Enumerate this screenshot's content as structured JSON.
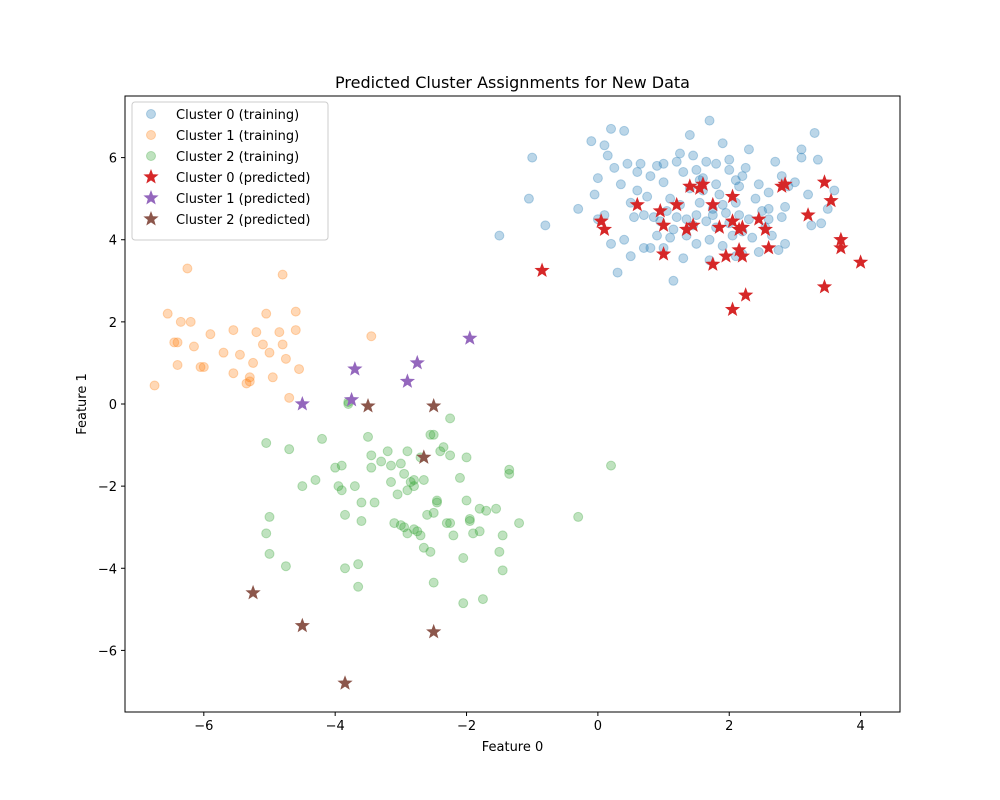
{
  "chart_data": {
    "type": "scatter",
    "title": "Predicted Cluster Assignments for New Data",
    "xlabel": "Feature 0",
    "ylabel": "Feature 1",
    "xlim": [
      -7.2,
      4.6
    ],
    "ylim": [
      -7.5,
      7.5
    ],
    "xticks": [
      -6,
      -4,
      -2,
      0,
      2,
      4
    ],
    "yticks": [
      -6,
      -4,
      -2,
      0,
      2,
      4,
      6
    ],
    "grid": false,
    "legend_position": "top-left",
    "series": [
      {
        "name": "Cluster 0 (training)",
        "marker": "circle",
        "color": "#1f77b4",
        "alpha": 0.3,
        "points": [
          [
            -0.3,
            4.75
          ],
          [
            -1.0,
            6.0
          ],
          [
            -1.05,
            5.0
          ],
          [
            -0.8,
            4.35
          ],
          [
            -1.5,
            4.1
          ],
          [
            0.3,
            3.2
          ],
          [
            0.0,
            5.5
          ],
          [
            0.1,
            6.3
          ],
          [
            -0.1,
            6.4
          ],
          [
            0.2,
            6.7
          ],
          [
            0.4,
            6.65
          ],
          [
            0.6,
            5.65
          ],
          [
            0.8,
            5.55
          ],
          [
            0.9,
            5.8
          ],
          [
            1.0,
            5.4
          ],
          [
            1.1,
            5.0
          ],
          [
            1.2,
            5.9
          ],
          [
            1.3,
            5.65
          ],
          [
            1.4,
            6.55
          ],
          [
            1.5,
            5.7
          ],
          [
            1.6,
            5.5
          ],
          [
            1.7,
            6.9
          ],
          [
            1.8,
            5.85
          ],
          [
            1.9,
            6.35
          ],
          [
            2.0,
            5.95
          ],
          [
            2.1,
            5.45
          ],
          [
            2.2,
            5.55
          ],
          [
            2.3,
            6.2
          ],
          [
            2.4,
            5.0
          ],
          [
            2.5,
            4.7
          ],
          [
            2.6,
            4.5
          ],
          [
            2.7,
            5.9
          ],
          [
            2.8,
            5.55
          ],
          [
            2.9,
            5.3
          ],
          [
            3.0,
            5.4
          ],
          [
            3.1,
            6.2
          ],
          [
            3.2,
            5.1
          ],
          [
            3.3,
            6.6
          ],
          [
            3.4,
            4.4
          ],
          [
            3.5,
            4.75
          ],
          [
            3.6,
            5.2
          ],
          [
            3.1,
            6.0
          ],
          [
            3.35,
            5.95
          ],
          [
            2.85,
            4.8
          ],
          [
            2.75,
            3.75
          ],
          [
            2.85,
            3.9
          ],
          [
            2.45,
            3.7
          ],
          [
            2.2,
            3.65
          ],
          [
            1.7,
            3.5
          ],
          [
            1.3,
            3.55
          ],
          [
            1.15,
            3.0
          ],
          [
            0.7,
            3.8
          ],
          [
            0.8,
            3.8
          ],
          [
            0.5,
            3.6
          ],
          [
            0.2,
            3.9
          ],
          [
            0.0,
            4.5
          ],
          [
            0.1,
            4.6
          ],
          [
            0.5,
            4.9
          ],
          [
            0.55,
            4.55
          ],
          [
            0.6,
            5.2
          ],
          [
            0.75,
            5.05
          ],
          [
            0.85,
            4.55
          ],
          [
            0.95,
            4.45
          ],
          [
            1.05,
            4.7
          ],
          [
            1.1,
            4.05
          ],
          [
            1.15,
            4.25
          ],
          [
            1.2,
            4.55
          ],
          [
            1.25,
            4.85
          ],
          [
            1.35,
            4.1
          ],
          [
            1.45,
            4.35
          ],
          [
            1.5,
            4.6
          ],
          [
            1.55,
            4.9
          ],
          [
            1.6,
            5.2
          ],
          [
            1.65,
            4.45
          ],
          [
            1.7,
            4.0
          ],
          [
            1.75,
            4.6
          ],
          [
            1.8,
            4.3
          ],
          [
            1.85,
            5.1
          ],
          [
            1.9,
            4.85
          ],
          [
            1.95,
            4.65
          ],
          [
            2.0,
            4.4
          ],
          [
            2.05,
            4.1
          ],
          [
            2.1,
            4.9
          ],
          [
            2.15,
            4.6
          ],
          [
            2.2,
            4.2
          ],
          [
            2.3,
            4.5
          ],
          [
            2.35,
            4.05
          ],
          [
            2.55,
            4.3
          ],
          [
            2.65,
            4.1
          ],
          [
            2.8,
            4.55
          ],
          [
            0.9,
            4.1
          ],
          [
            0.7,
            4.6
          ],
          [
            1.0,
            5.85
          ],
          [
            1.4,
            5.25
          ],
          [
            1.55,
            5.45
          ],
          [
            1.65,
            5.9
          ],
          [
            1.75,
            4.75
          ],
          [
            2.25,
            5.75
          ],
          [
            2.45,
            5.35
          ],
          [
            0.35,
            5.35
          ],
          [
            0.25,
            5.75
          ],
          [
            0.45,
            5.85
          ],
          [
            -0.05,
            5.1
          ],
          [
            0.15,
            6.05
          ],
          [
            0.65,
            5.85
          ],
          [
            1.25,
            6.1
          ],
          [
            1.45,
            6.05
          ],
          [
            2.0,
            5.7
          ],
          [
            2.6,
            5.15
          ],
          [
            3.25,
            4.35
          ],
          [
            1.9,
            3.85
          ],
          [
            1.0,
            3.8
          ],
          [
            0.4,
            4.0
          ],
          [
            2.1,
            3.6
          ],
          [
            2.6,
            4.75
          ],
          [
            1.35,
            4.5
          ],
          [
            1.5,
            3.9
          ],
          [
            1.8,
            5.35
          ],
          [
            2.15,
            5.3
          ]
        ]
      },
      {
        "name": "Cluster 1 (training)",
        "marker": "circle",
        "color": "#ff7f0e",
        "alpha": 0.3,
        "points": [
          [
            -6.75,
            0.45
          ],
          [
            -6.55,
            2.2
          ],
          [
            -6.35,
            2.0
          ],
          [
            -6.45,
            1.5
          ],
          [
            -6.4,
            1.5
          ],
          [
            -6.4,
            0.95
          ],
          [
            -6.2,
            2.0
          ],
          [
            -6.15,
            1.4
          ],
          [
            -6.05,
            0.9
          ],
          [
            -6.0,
            0.9
          ],
          [
            -6.25,
            3.3
          ],
          [
            -5.9,
            1.7
          ],
          [
            -5.7,
            1.25
          ],
          [
            -5.55,
            1.8
          ],
          [
            -5.55,
            0.75
          ],
          [
            -5.45,
            1.2
          ],
          [
            -5.35,
            0.5
          ],
          [
            -5.3,
            0.55
          ],
          [
            -5.3,
            0.65
          ],
          [
            -5.25,
            1.0
          ],
          [
            -5.2,
            1.75
          ],
          [
            -5.1,
            1.45
          ],
          [
            -5.05,
            2.2
          ],
          [
            -5.0,
            1.25
          ],
          [
            -4.95,
            0.65
          ],
          [
            -4.85,
            1.75
          ],
          [
            -4.8,
            1.45
          ],
          [
            -4.8,
            3.15
          ],
          [
            -4.75,
            1.1
          ],
          [
            -4.6,
            2.25
          ],
          [
            -4.6,
            1.8
          ],
          [
            -4.55,
            0.85
          ],
          [
            -4.7,
            0.15
          ],
          [
            -3.45,
            1.65
          ]
        ]
      },
      {
        "name": "Cluster 2 (training)",
        "marker": "circle",
        "color": "#2ca02c",
        "alpha": 0.3,
        "points": [
          [
            -5.05,
            -0.95
          ],
          [
            -4.7,
            -1.1
          ],
          [
            -4.5,
            -2.0
          ],
          [
            -4.3,
            -1.85
          ],
          [
            -4.2,
            -0.85
          ],
          [
            -4.0,
            -1.55
          ],
          [
            -3.95,
            -2.0
          ],
          [
            -3.9,
            -2.1
          ],
          [
            -3.9,
            -1.5
          ],
          [
            -3.85,
            -2.7
          ],
          [
            -3.8,
            0.05
          ],
          [
            -3.8,
            0.0
          ],
          [
            -3.7,
            -2.0
          ],
          [
            -3.65,
            -3.9
          ],
          [
            -3.65,
            -4.45
          ],
          [
            -3.6,
            -2.85
          ],
          [
            -3.6,
            -2.4
          ],
          [
            -3.5,
            -0.8
          ],
          [
            -3.45,
            -1.25
          ],
          [
            -3.45,
            -1.55
          ],
          [
            -3.4,
            -2.4
          ],
          [
            -3.3,
            -1.4
          ],
          [
            -3.2,
            -1.15
          ],
          [
            -3.15,
            -1.5
          ],
          [
            -3.15,
            -1.9
          ],
          [
            -3.1,
            -2.9
          ],
          [
            -3.05,
            -2.2
          ],
          [
            -3.0,
            -2.95
          ],
          [
            -3.0,
            -1.45
          ],
          [
            -2.95,
            -1.7
          ],
          [
            -2.95,
            -3.0
          ],
          [
            -2.9,
            -3.15
          ],
          [
            -2.9,
            -2.1
          ],
          [
            -2.9,
            -1.15
          ],
          [
            -2.85,
            -1.9
          ],
          [
            -2.8,
            -1.85
          ],
          [
            -2.8,
            -2.0
          ],
          [
            -2.8,
            -3.05
          ],
          [
            -2.75,
            -3.1
          ],
          [
            -2.7,
            -1.3
          ],
          [
            -2.7,
            -3.2
          ],
          [
            -2.65,
            -1.85
          ],
          [
            -2.65,
            -3.5
          ],
          [
            -2.6,
            -2.7
          ],
          [
            -2.55,
            -0.75
          ],
          [
            -2.55,
            -3.6
          ],
          [
            -2.5,
            -0.75
          ],
          [
            -2.5,
            -2.65
          ],
          [
            -2.5,
            -4.35
          ],
          [
            -2.45,
            -2.35
          ],
          [
            -2.45,
            -2.4
          ],
          [
            -2.4,
            -1.15
          ],
          [
            -2.35,
            -1.05
          ],
          [
            -2.3,
            -2.9
          ],
          [
            -2.25,
            -2.9
          ],
          [
            -2.25,
            -0.35
          ],
          [
            -2.25,
            -1.25
          ],
          [
            -2.2,
            -3.2
          ],
          [
            -2.1,
            -1.8
          ],
          [
            -2.05,
            -3.75
          ],
          [
            -2.05,
            -4.85
          ],
          [
            -2.0,
            -1.3
          ],
          [
            -2.0,
            -2.35
          ],
          [
            -1.95,
            -2.8
          ],
          [
            -1.95,
            -2.85
          ],
          [
            -1.9,
            -3.15
          ],
          [
            -1.8,
            -2.55
          ],
          [
            -1.8,
            -3.1
          ],
          [
            -1.75,
            -4.75
          ],
          [
            -1.7,
            -2.6
          ],
          [
            -1.55,
            -2.55
          ],
          [
            -1.5,
            -3.6
          ],
          [
            -1.45,
            -3.2
          ],
          [
            -1.45,
            -4.05
          ],
          [
            -1.35,
            -1.6
          ],
          [
            -1.35,
            -1.7
          ],
          [
            -0.3,
            -2.75
          ],
          [
            0.2,
            -1.5
          ],
          [
            -5.0,
            -2.75
          ],
          [
            -5.05,
            -3.15
          ],
          [
            -5.0,
            -3.65
          ],
          [
            -4.75,
            -3.95
          ],
          [
            -3.85,
            -4.0
          ],
          [
            -1.2,
            -2.9
          ]
        ]
      },
      {
        "name": "Cluster 0 (predicted)",
        "marker": "star",
        "color": "#d62728",
        "alpha": 1,
        "points": [
          [
            -0.85,
            3.25
          ],
          [
            0.05,
            4.45
          ],
          [
            0.1,
            4.25
          ],
          [
            0.6,
            4.85
          ],
          [
            0.95,
            4.7
          ],
          [
            1.0,
            4.35
          ],
          [
            1.0,
            3.65
          ],
          [
            1.2,
            4.85
          ],
          [
            1.35,
            4.25
          ],
          [
            1.45,
            4.35
          ],
          [
            1.4,
            5.3
          ],
          [
            1.55,
            5.25
          ],
          [
            1.6,
            5.35
          ],
          [
            1.75,
            4.85
          ],
          [
            1.75,
            3.4
          ],
          [
            1.85,
            4.3
          ],
          [
            1.95,
            3.6
          ],
          [
            2.05,
            4.45
          ],
          [
            2.05,
            5.05
          ],
          [
            2.05,
            2.3
          ],
          [
            2.15,
            4.25
          ],
          [
            2.15,
            3.75
          ],
          [
            2.2,
            4.3
          ],
          [
            2.2,
            3.6
          ],
          [
            2.25,
            2.65
          ],
          [
            2.45,
            4.5
          ],
          [
            2.55,
            4.25
          ],
          [
            2.6,
            3.8
          ],
          [
            2.8,
            5.3
          ],
          [
            2.85,
            5.35
          ],
          [
            3.2,
            4.6
          ],
          [
            3.45,
            5.4
          ],
          [
            3.45,
            2.85
          ],
          [
            3.55,
            4.95
          ],
          [
            3.7,
            4.0
          ],
          [
            3.7,
            3.8
          ],
          [
            4.0,
            3.45
          ]
        ]
      },
      {
        "name": "Cluster 1 (predicted)",
        "marker": "star",
        "color": "#9467bd",
        "alpha": 1,
        "points": [
          [
            -4.5,
            0.0
          ],
          [
            -3.75,
            0.1
          ],
          [
            -3.7,
            0.85
          ],
          [
            -2.9,
            0.55
          ],
          [
            -2.75,
            1.0
          ],
          [
            -1.95,
            1.6
          ]
        ]
      },
      {
        "name": "Cluster 2 (predicted)",
        "marker": "star",
        "color": "#8c564b",
        "alpha": 1,
        "points": [
          [
            -3.5,
            -0.05
          ],
          [
            -2.5,
            -0.05
          ],
          [
            -2.65,
            -1.3
          ],
          [
            -5.25,
            -4.6
          ],
          [
            -4.5,
            -5.4
          ],
          [
            -2.5,
            -5.55
          ],
          [
            -3.85,
            -6.8
          ]
        ]
      }
    ]
  }
}
